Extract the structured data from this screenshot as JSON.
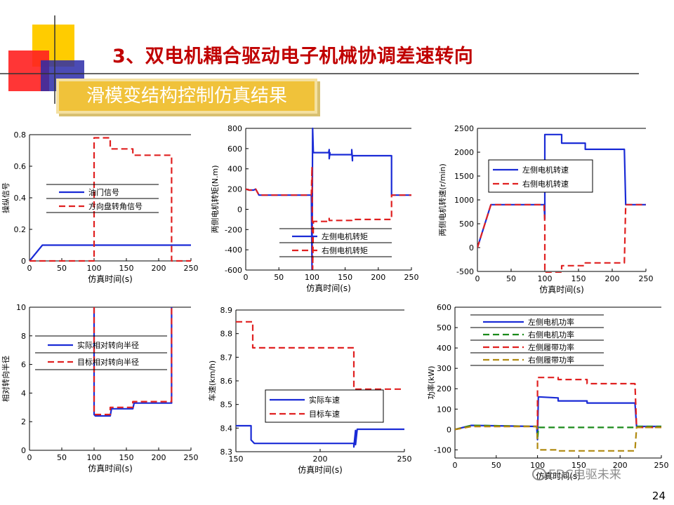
{
  "page": {
    "title": "3、双电机耦合驱动电子机械协调差速转向",
    "subtitle": "滑模变结构控制仿真结果",
    "page_number": "24",
    "watermark": "EDC电驱未来",
    "colors": {
      "title": "#c00000",
      "subtitle_bg": "#f0c23a",
      "blue": "#1a2bd6",
      "red": "#e02020",
      "green": "#1a8a1a",
      "olive": "#b08a10"
    }
  },
  "chart_data": [
    {
      "type": "line",
      "xlabel": "仿真时间(s)",
      "ylabel": "操纵信号",
      "xlim": [
        0,
        250
      ],
      "ylim": [
        0,
        0.8
      ],
      "xticks": [
        0,
        50,
        100,
        150,
        200,
        250
      ],
      "yticks": [
        0,
        0.2,
        0.4,
        0.6,
        0.8
      ],
      "xtick_labels": [
        "0",
        "50",
        "100",
        "150",
        "200",
        "250"
      ],
      "ytick_labels": [
        "0",
        "0.2",
        "0.4",
        "0.6",
        "0.8"
      ],
      "series": [
        {
          "name": "油门信号",
          "color": "#1a2bd6",
          "dash": false,
          "x": [
            0,
            20,
            250
          ],
          "y": [
            0,
            0.1,
            0.1
          ]
        },
        {
          "name": "方向盘转角信号",
          "color": "#e02020",
          "dash": true,
          "x": [
            0,
            100,
            100,
            125,
            125,
            160,
            160,
            220,
            220,
            250
          ],
          "y": [
            0,
            0,
            0.78,
            0.78,
            0.71,
            0.71,
            0.67,
            0.67,
            0,
            0
          ]
        }
      ]
    },
    {
      "type": "line",
      "xlabel": "仿真时间(s)",
      "ylabel": "两侧电机转矩(N.m)",
      "xlim": [
        0,
        250
      ],
      "ylim": [
        -600,
        800
      ],
      "xticks": [
        0,
        50,
        100,
        150,
        200,
        250
      ],
      "yticks": [
        -600,
        -400,
        -200,
        0,
        200,
        400,
        600,
        800
      ],
      "xtick_labels": [
        "0",
        "50",
        "100",
        "150",
        "200",
        "250"
      ],
      "ytick_labels": [
        "-600",
        "-400",
        "-200",
        "0",
        "200",
        "400",
        "600",
        "800"
      ],
      "series": [
        {
          "name": "左侧电机转矩",
          "color": "#1a2bd6",
          "dash": false,
          "x": [
            0,
            5,
            12,
            15,
            20,
            99,
            100,
            101,
            102,
            102,
            125,
            126,
            126,
            127,
            127,
            160,
            160,
            161,
            161,
            220,
            220,
            250
          ],
          "y": [
            200,
            190,
            190,
            200,
            140,
            140,
            -590,
            800,
            560,
            560,
            560,
            590,
            500,
            560,
            540,
            540,
            590,
            480,
            530,
            530,
            140,
            140
          ]
        },
        {
          "name": "右侧电机转矩",
          "color": "#e02020",
          "dash": true,
          "x": [
            0,
            5,
            12,
            15,
            20,
            99,
            100,
            101,
            102,
            102,
            125,
            126,
            126,
            160,
            160,
            220,
            220,
            250
          ],
          "y": [
            200,
            190,
            190,
            200,
            140,
            140,
            420,
            -590,
            -150,
            -120,
            -120,
            -90,
            -110,
            -110,
            -100,
            -100,
            140,
            140
          ]
        }
      ]
    },
    {
      "type": "line",
      "xlabel": "仿真时间(s)",
      "ylabel": "两侧电机转速(r/min)",
      "xlim": [
        0,
        250
      ],
      "ylim": [
        -500,
        2500
      ],
      "xticks": [
        0,
        50,
        100,
        150,
        200,
        250
      ],
      "yticks": [
        -500,
        0,
        500,
        1000,
        1500,
        2000,
        2500
      ],
      "xtick_labels": [
        "0",
        "50",
        "100",
        "150",
        "200",
        "250"
      ],
      "ytick_labels": [
        "-500",
        "0",
        "500",
        "1000",
        "1500",
        "2000",
        "2500"
      ],
      "series": [
        {
          "name": "左侧电机转速",
          "color": "#1a2bd6",
          "dash": false,
          "x": [
            0,
            20,
            99,
            100,
            100,
            125,
            125,
            160,
            160,
            218,
            220,
            250
          ],
          "y": [
            0,
            900,
            900,
            600,
            2370,
            2370,
            2190,
            2190,
            2060,
            2060,
            900,
            900
          ]
        },
        {
          "name": "右侧电机转速",
          "color": "#e02020",
          "dash": true,
          "x": [
            0,
            20,
            99,
            100,
            100,
            125,
            125,
            160,
            160,
            218,
            220,
            250
          ],
          "y": [
            0,
            900,
            900,
            500,
            -530,
            -530,
            -380,
            -380,
            -320,
            -320,
            900,
            900
          ]
        }
      ]
    },
    {
      "type": "line",
      "xlabel": "仿真时间(s)",
      "ylabel": "相对转向半径",
      "xlim": [
        0,
        250
      ],
      "ylim": [
        0,
        10
      ],
      "xticks": [
        0,
        50,
        100,
        150,
        200,
        250
      ],
      "yticks": [
        0,
        2,
        4,
        6,
        8,
        10
      ],
      "xtick_labels": [
        "0",
        "50",
        "100",
        "150",
        "200",
        "250"
      ],
      "ytick_labels": [
        "0",
        "2",
        "4",
        "6",
        "8",
        "10"
      ],
      "series": [
        {
          "name": "实际相对转向半径",
          "color": "#1a2bd6",
          "dash": false,
          "x": [
            100,
            100,
            102,
            125,
            127,
            160,
            162,
            220,
            220
          ],
          "y": [
            10,
            2.5,
            2.4,
            2.4,
            2.9,
            2.9,
            3.3,
            3.3,
            10
          ]
        },
        {
          "name": "目标相对转向半径",
          "color": "#e02020",
          "dash": true,
          "x": [
            100,
            100,
            125,
            125,
            160,
            160,
            220,
            220
          ],
          "y": [
            10,
            2.5,
            2.5,
            3.0,
            3.0,
            3.4,
            3.4,
            10
          ]
        }
      ]
    },
    {
      "type": "line",
      "xlabel": "仿真时间(s)",
      "ylabel": "车速(km/h)",
      "xlim": [
        150,
        250
      ],
      "ylim": [
        8.3,
        8.9
      ],
      "xticks": [
        150,
        200,
        250
      ],
      "yticks": [
        8.3,
        8.4,
        8.5,
        8.6,
        8.7,
        8.8,
        8.9
      ],
      "xtick_labels": [
        "150",
        "200",
        "250"
      ],
      "ytick_labels": [
        "8.3",
        "8.4",
        "8.5",
        "8.6",
        "8.7",
        "8.8",
        "8.9"
      ],
      "series": [
        {
          "name": "实际车速",
          "color": "#1a2bd6",
          "dash": false,
          "x": [
            150,
            159,
            159,
            161,
            220,
            220,
            221,
            221,
            222,
            250
          ],
          "y": [
            8.41,
            8.41,
            8.35,
            8.335,
            8.335,
            8.32,
            8.39,
            8.33,
            8.395,
            8.395
          ]
        },
        {
          "name": "目标车速",
          "color": "#e02020",
          "dash": true,
          "x": [
            150,
            160,
            160,
            220,
            220,
            250
          ],
          "y": [
            8.85,
            8.85,
            8.74,
            8.74,
            8.565,
            8.565
          ]
        }
      ]
    },
    {
      "type": "line",
      "xlabel": "仿真时间(s)",
      "ylabel": "功率(kW)",
      "xlim": [
        0,
        250
      ],
      "ylim": [
        -140,
        600
      ],
      "xticks": [
        0,
        50,
        100,
        150,
        200,
        250
      ],
      "yticks": [
        -100,
        0,
        100,
        200,
        300,
        400,
        500,
        600
      ],
      "xtick_labels": [
        "0",
        "50",
        "100",
        "150",
        "200",
        "250"
      ],
      "ytick_labels": [
        "-100",
        "0",
        "100",
        "200",
        "300",
        "400",
        "500",
        "600"
      ],
      "series": [
        {
          "name": "左侧电机功率",
          "color": "#1a2bd6",
          "dash": false,
          "x": [
            0,
            20,
            99,
            100,
            101,
            125,
            125,
            160,
            160,
            218,
            220,
            250
          ],
          "y": [
            0,
            20,
            15,
            -50,
            160,
            155,
            140,
            140,
            130,
            130,
            15,
            15
          ]
        },
        {
          "name": "右侧电机功率",
          "color": "#1a8a1a",
          "dash": true,
          "x": [
            0,
            20,
            99,
            100,
            101,
            218,
            220,
            250
          ],
          "y": [
            0,
            20,
            15,
            -50,
            10,
            10,
            15,
            15
          ]
        },
        {
          "name": "左侧履带功率",
          "color": "#e02020",
          "dash": true,
          "x": [
            0,
            20,
            99,
            100,
            100,
            125,
            125,
            160,
            160,
            218,
            220,
            250
          ],
          "y": [
            0,
            15,
            15,
            0,
            255,
            255,
            245,
            245,
            225,
            225,
            10,
            10
          ]
        },
        {
          "name": "右侧履带功率",
          "color": "#b08a10",
          "dash": true,
          "x": [
            0,
            20,
            99,
            100,
            100,
            125,
            125,
            218,
            220,
            250
          ],
          "y": [
            0,
            15,
            15,
            -60,
            -100,
            -100,
            -105,
            -105,
            10,
            10
          ]
        }
      ]
    }
  ]
}
